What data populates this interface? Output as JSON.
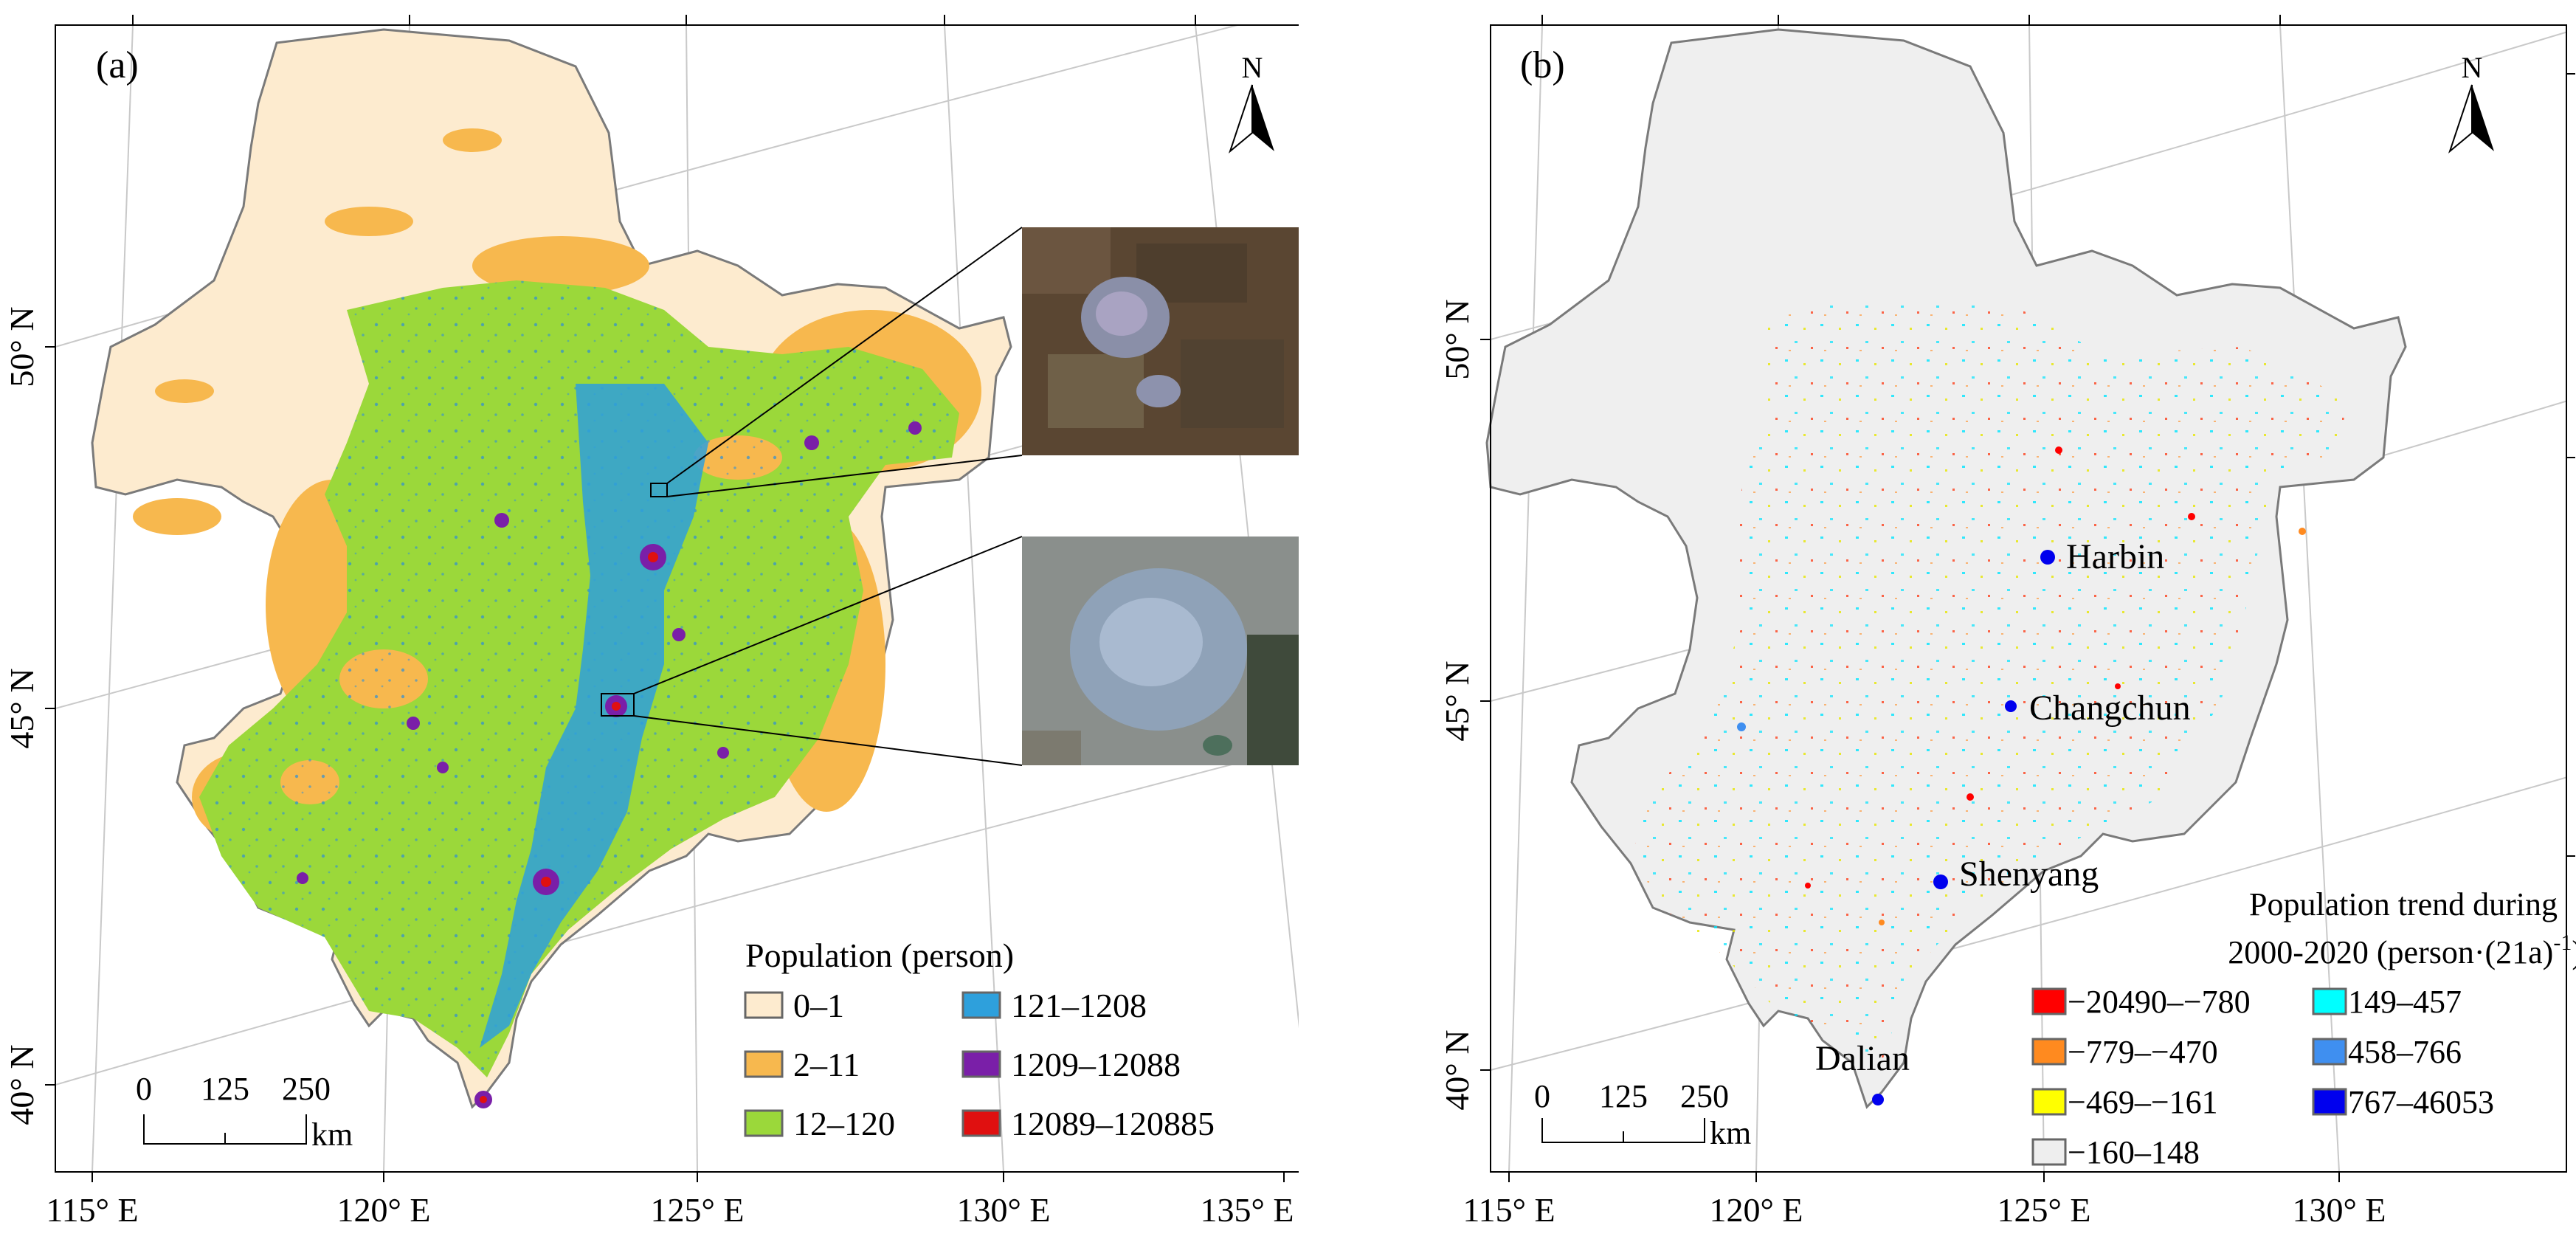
{
  "panel_a": {
    "label": "(a)",
    "north": "N",
    "lat_labels": [
      "50° N",
      "45° N",
      "40° N"
    ],
    "lon_labels": [
      "115° E",
      "120° E",
      "125° E",
      "130° E",
      "135° E"
    ],
    "scale": {
      "ticks": [
        "0",
        "125",
        "250"
      ],
      "unit": "km"
    },
    "legend": {
      "title": "Population (person)",
      "items": [
        {
          "label": "0–1",
          "color": "#fdebcf"
        },
        {
          "label": "2–11",
          "color": "#f7b84e"
        },
        {
          "label": "12–120",
          "color": "#9bd83a"
        },
        {
          "label": "121–1208",
          "color": "#2ea0dc"
        },
        {
          "label": "1209–12088",
          "color": "#7a1fa8"
        },
        {
          "label": "12089–120885",
          "color": "#e01010"
        }
      ]
    }
  },
  "panel_b": {
    "label": "(b)",
    "north": "N",
    "lat_labels": [
      "50° N",
      "45° N",
      "40° N"
    ],
    "lon_labels": [
      "115° E",
      "120° E",
      "125° E",
      "130° E"
    ],
    "scale": {
      "ticks": [
        "0",
        "125",
        "250"
      ],
      "unit": "km"
    },
    "cities": [
      "Harbin",
      "Changchun",
      "Shenyang",
      "Dalian"
    ],
    "legend": {
      "title_line1": "Population trend  during",
      "title_line2": "2000-2020 (person·(21a)",
      "title_sup": "-1",
      "title_close": ")",
      "items": [
        {
          "label": "−20490–−780",
          "color": "#ff0000"
        },
        {
          "label": "−779–−470",
          "color": "#ff8a1f"
        },
        {
          "label": "−469–−161",
          "color": "#ffff00"
        },
        {
          "label": "−160–148",
          "color": "#eeeeee"
        },
        {
          "label": "149–457",
          "color": "#00ffff"
        },
        {
          "label": "458–766",
          "color": "#3f8ff0"
        },
        {
          "label": "767–46053",
          "color": "#0000ee"
        }
      ]
    }
  }
}
